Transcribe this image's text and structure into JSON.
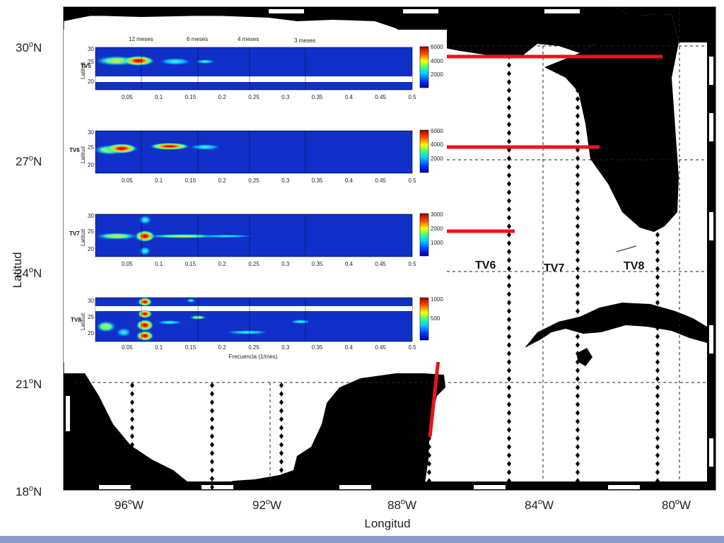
{
  "map": {
    "xlabel": "Longitud",
    "ylabel": "Latitud",
    "lon_ticks": [
      {
        "deg": "96",
        "suffix": "W"
      },
      {
        "deg": "92",
        "suffix": "W"
      },
      {
        "deg": "88",
        "suffix": "W"
      },
      {
        "deg": "84",
        "suffix": "W"
      },
      {
        "deg": "80",
        "suffix": "W"
      }
    ],
    "lat_ticks": [
      {
        "deg": "30",
        "suffix": "N"
      },
      {
        "deg": "27",
        "suffix": "N"
      },
      {
        "deg": "24",
        "suffix": "N"
      },
      {
        "deg": "21",
        "suffix": "N"
      },
      {
        "deg": "18",
        "suffix": "N"
      }
    ],
    "transect_labels": [
      "TV6",
      "TV7",
      "TV8"
    ]
  },
  "spectra": {
    "periods": [
      "12 meses",
      "6 meses",
      "4 meses",
      "3 meses"
    ],
    "xticks": [
      "0.05",
      "0.1",
      "0.15",
      "0.2",
      "0.25",
      "0.3",
      "0.35",
      "0.4",
      "0.45",
      "0.5"
    ],
    "xlabel": "Frecuencia (1/mes)",
    "ylabel": "Latitud",
    "panels": [
      {
        "name": "TV5",
        "yticks": [
          "30",
          "25",
          "20"
        ],
        "cbar": [
          "6000",
          "4000",
          "2000"
        ]
      },
      {
        "name": "TV6",
        "yticks": [
          "30",
          "25",
          "20"
        ],
        "cbar": [
          "6000",
          "4000",
          "2000"
        ]
      },
      {
        "name": "TV7",
        "yticks": [
          "30",
          "25",
          "20"
        ],
        "cbar": [
          "3000",
          "2000",
          "1000"
        ]
      },
      {
        "name": "TV8",
        "yticks": [
          "30",
          "25",
          "20"
        ],
        "cbar": [
          "1000",
          "500"
        ]
      }
    ]
  },
  "colors": {
    "land": "#000000",
    "water": "#ffffff",
    "transect_marker": "#000000",
    "section_line": "#e8141b",
    "spectrum_background": "#1030c8"
  }
}
